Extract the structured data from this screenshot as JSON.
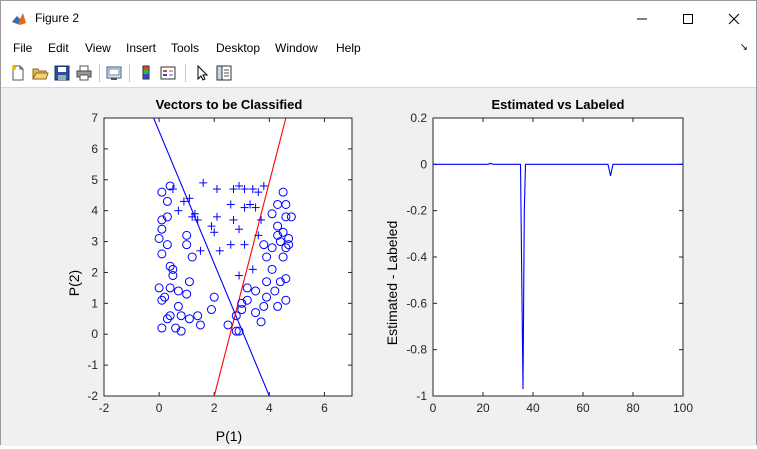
{
  "window": {
    "title": "Figure 2",
    "minimize_glyph": "—",
    "maximize_glyph": "☐",
    "close_glyph": "✕"
  },
  "menu": {
    "items": [
      "File",
      "Edit",
      "View",
      "Insert",
      "Tools",
      "Desktop",
      "Window",
      "Help"
    ],
    "overflow_glyph": "↘"
  },
  "toolbar": {
    "icons": [
      "new-figure-icon",
      "open-file-icon",
      "save-icon",
      "print-icon",
      "print-preview-icon",
      "colorbar-icon",
      "legend-icon",
      "pointer-icon",
      "property-editor-icon"
    ]
  },
  "chart_data": [
    {
      "type": "scatter",
      "title": "Vectors to be Classified",
      "xlabel": "P(1)",
      "ylabel": "P(2)",
      "xlim": [
        -2,
        7
      ],
      "ylim": [
        -2,
        7
      ],
      "xticks": [
        "-2",
        "0",
        "2",
        "4",
        "6"
      ],
      "yticks": [
        "-2",
        "-1",
        "0",
        "1",
        "2",
        "3",
        "4",
        "5",
        "6",
        "7"
      ],
      "color": "#0000ff",
      "series": [
        {
          "marker": "+",
          "points": [
            [
              0.5,
              4.7
            ],
            [
              0.9,
              4.3
            ],
            [
              1.1,
              4.4
            ],
            [
              0.7,
              4.0
            ],
            [
              1.2,
              3.8
            ],
            [
              1.3,
              3.9
            ],
            [
              1.6,
              4.9
            ],
            [
              2.1,
              4.7
            ],
            [
              1.4,
              3.7
            ],
            [
              1.9,
              3.5
            ],
            [
              2.1,
              3.8
            ],
            [
              2.0,
              3.3
            ],
            [
              1.5,
              2.7
            ],
            [
              2.2,
              2.7
            ],
            [
              2.6,
              2.9
            ],
            [
              2.7,
              4.7
            ],
            [
              2.7,
              3.7
            ],
            [
              2.6,
              4.2
            ],
            [
              2.9,
              4.8
            ],
            [
              3.1,
              4.7
            ],
            [
              3.3,
              4.2
            ],
            [
              3.1,
              4.1
            ],
            [
              2.9,
              3.4
            ],
            [
              3.4,
              4.7
            ],
            [
              3.6,
              4.6
            ],
            [
              3.8,
              4.8
            ],
            [
              3.5,
              4.1
            ],
            [
              3.7,
              3.7
            ],
            [
              3.6,
              3.2
            ],
            [
              3.1,
              2.9
            ],
            [
              3.4,
              2.1
            ],
            [
              2.9,
              1.9
            ]
          ]
        },
        {
          "marker": "o",
          "points": [
            [
              0.1,
              4.6
            ],
            [
              0.4,
              4.8
            ],
            [
              0.3,
              4.3
            ],
            [
              0.1,
              3.7
            ],
            [
              0.3,
              3.8
            ],
            [
              0.1,
              3.4
            ],
            [
              0.0,
              3.1
            ],
            [
              0.3,
              2.9
            ],
            [
              0.1,
              2.6
            ],
            [
              0.4,
              2.2
            ],
            [
              0.5,
              2.1
            ],
            [
              0.5,
              1.9
            ],
            [
              0.4,
              1.5
            ],
            [
              0.0,
              1.5
            ],
            [
              0.2,
              1.2
            ],
            [
              0.1,
              1.1
            ],
            [
              0.7,
              1.4
            ],
            [
              1.0,
              1.3
            ],
            [
              0.7,
              0.9
            ],
            [
              0.8,
              0.6
            ],
            [
              1.1,
              0.5
            ],
            [
              0.4,
              0.6
            ],
            [
              0.3,
              0.5
            ],
            [
              0.1,
              0.2
            ],
            [
              0.6,
              0.2
            ],
            [
              0.8,
              0.1
            ],
            [
              1.1,
              1.7
            ],
            [
              1.0,
              3.2
            ],
            [
              1.0,
              2.9
            ],
            [
              1.2,
              2.5
            ],
            [
              1.4,
              0.6
            ],
            [
              1.5,
              0.3
            ],
            [
              2.0,
              1.2
            ],
            [
              1.9,
              0.8
            ],
            [
              2.5,
              0.3
            ],
            [
              2.8,
              0.6
            ],
            [
              3.0,
              0.8
            ],
            [
              2.9,
              0.1
            ],
            [
              2.8,
              0.1
            ],
            [
              3.0,
              1.0
            ],
            [
              3.2,
              1.1
            ],
            [
              3.2,
              1.5
            ],
            [
              3.5,
              1.4
            ],
            [
              3.5,
              0.7
            ],
            [
              3.7,
              0.4
            ],
            [
              3.8,
              0.9
            ],
            [
              3.9,
              1.2
            ],
            [
              3.9,
              1.7
            ],
            [
              4.1,
              2.1
            ],
            [
              3.9,
              2.5
            ],
            [
              4.1,
              2.8
            ],
            [
              3.8,
              2.9
            ],
            [
              4.3,
              3.2
            ],
            [
              4.4,
              3.0
            ],
            [
              4.5,
              3.3
            ],
            [
              4.7,
              3.1
            ],
            [
              4.6,
              2.8
            ],
            [
              4.5,
              2.5
            ],
            [
              4.6,
              3.8
            ],
            [
              4.8,
              3.8
            ],
            [
              4.6,
              4.2
            ],
            [
              4.5,
              4.6
            ],
            [
              4.3,
              4.2
            ],
            [
              4.1,
              3.9
            ],
            [
              4.3,
              3.5
            ],
            [
              4.7,
              2.9
            ],
            [
              4.6,
              1.8
            ],
            [
              4.4,
              1.7
            ],
            [
              4.2,
              1.4
            ],
            [
              4.6,
              1.1
            ],
            [
              4.3,
              0.9
            ]
          ]
        }
      ],
      "lines": [
        {
          "color": "#0000ff",
          "from": [
            -0.2,
            7
          ],
          "to": [
            4.0,
            -2
          ]
        },
        {
          "color": "#ff0000",
          "from": [
            2.0,
            -2
          ],
          "to": [
            4.6,
            7
          ]
        }
      ]
    },
    {
      "type": "line",
      "title": "Estimated vs Labeled",
      "xlabel": "",
      "ylabel": "Estimated - Labeled",
      "xlim": [
        0,
        100
      ],
      "ylim": [
        -1,
        0.2
      ],
      "xticks": [
        "0",
        "20",
        "40",
        "60",
        "80",
        "100"
      ],
      "yticks": [
        "0.2",
        "0",
        "-0.2",
        "-0.4",
        "-0.6",
        "-0.8",
        "-1"
      ],
      "color": "#0000ff",
      "x": [
        0,
        22,
        23,
        24,
        35,
        36,
        36.5,
        37,
        38,
        40,
        70,
        71,
        72,
        100
      ],
      "y": [
        0,
        0,
        0.005,
        0,
        0,
        -0.97,
        -0.2,
        0,
        0,
        0,
        0,
        -0.05,
        0,
        0
      ]
    }
  ]
}
